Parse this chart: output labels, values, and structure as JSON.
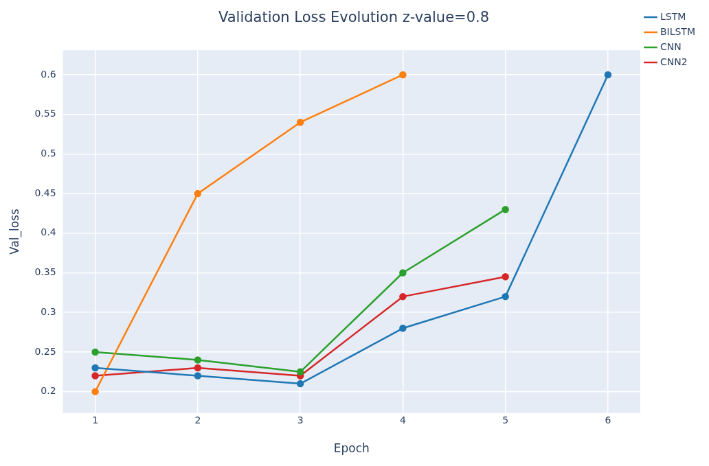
{
  "chart_data": {
    "type": "line",
    "title": "Validation Loss Evolution z-value=0.8",
    "xlabel": "Epoch",
    "ylabel": "Val_loss",
    "x": [
      1,
      2,
      3,
      4,
      5,
      6
    ],
    "series": [
      {
        "name": "LSTM",
        "color": "#1f77b4",
        "values": [
          0.23,
          0.22,
          0.21,
          0.28,
          0.32,
          0.6
        ]
      },
      {
        "name": "BILSTM",
        "color": "#ff7f0e",
        "values": [
          0.2,
          0.45,
          0.54,
          0.6,
          null,
          null
        ]
      },
      {
        "name": "CNN",
        "color": "#2ca02c",
        "values": [
          0.25,
          0.24,
          0.225,
          0.35,
          0.43,
          null
        ]
      },
      {
        "name": "CNN2",
        "color": "#d62728",
        "values": [
          0.22,
          0.23,
          0.22,
          0.32,
          0.345,
          null
        ]
      }
    ],
    "xlim": [
      0.685,
      6.315
    ],
    "xticks": [
      1,
      2,
      3,
      4,
      5,
      6
    ],
    "ylim": [
      0.173,
      0.631
    ],
    "yticks": [
      0.2,
      0.25,
      0.3,
      0.35,
      0.4,
      0.45,
      0.5,
      0.55,
      0.6
    ],
    "grid": true,
    "legend": "top right",
    "marker": "circle",
    "line_style": "solid"
  }
}
